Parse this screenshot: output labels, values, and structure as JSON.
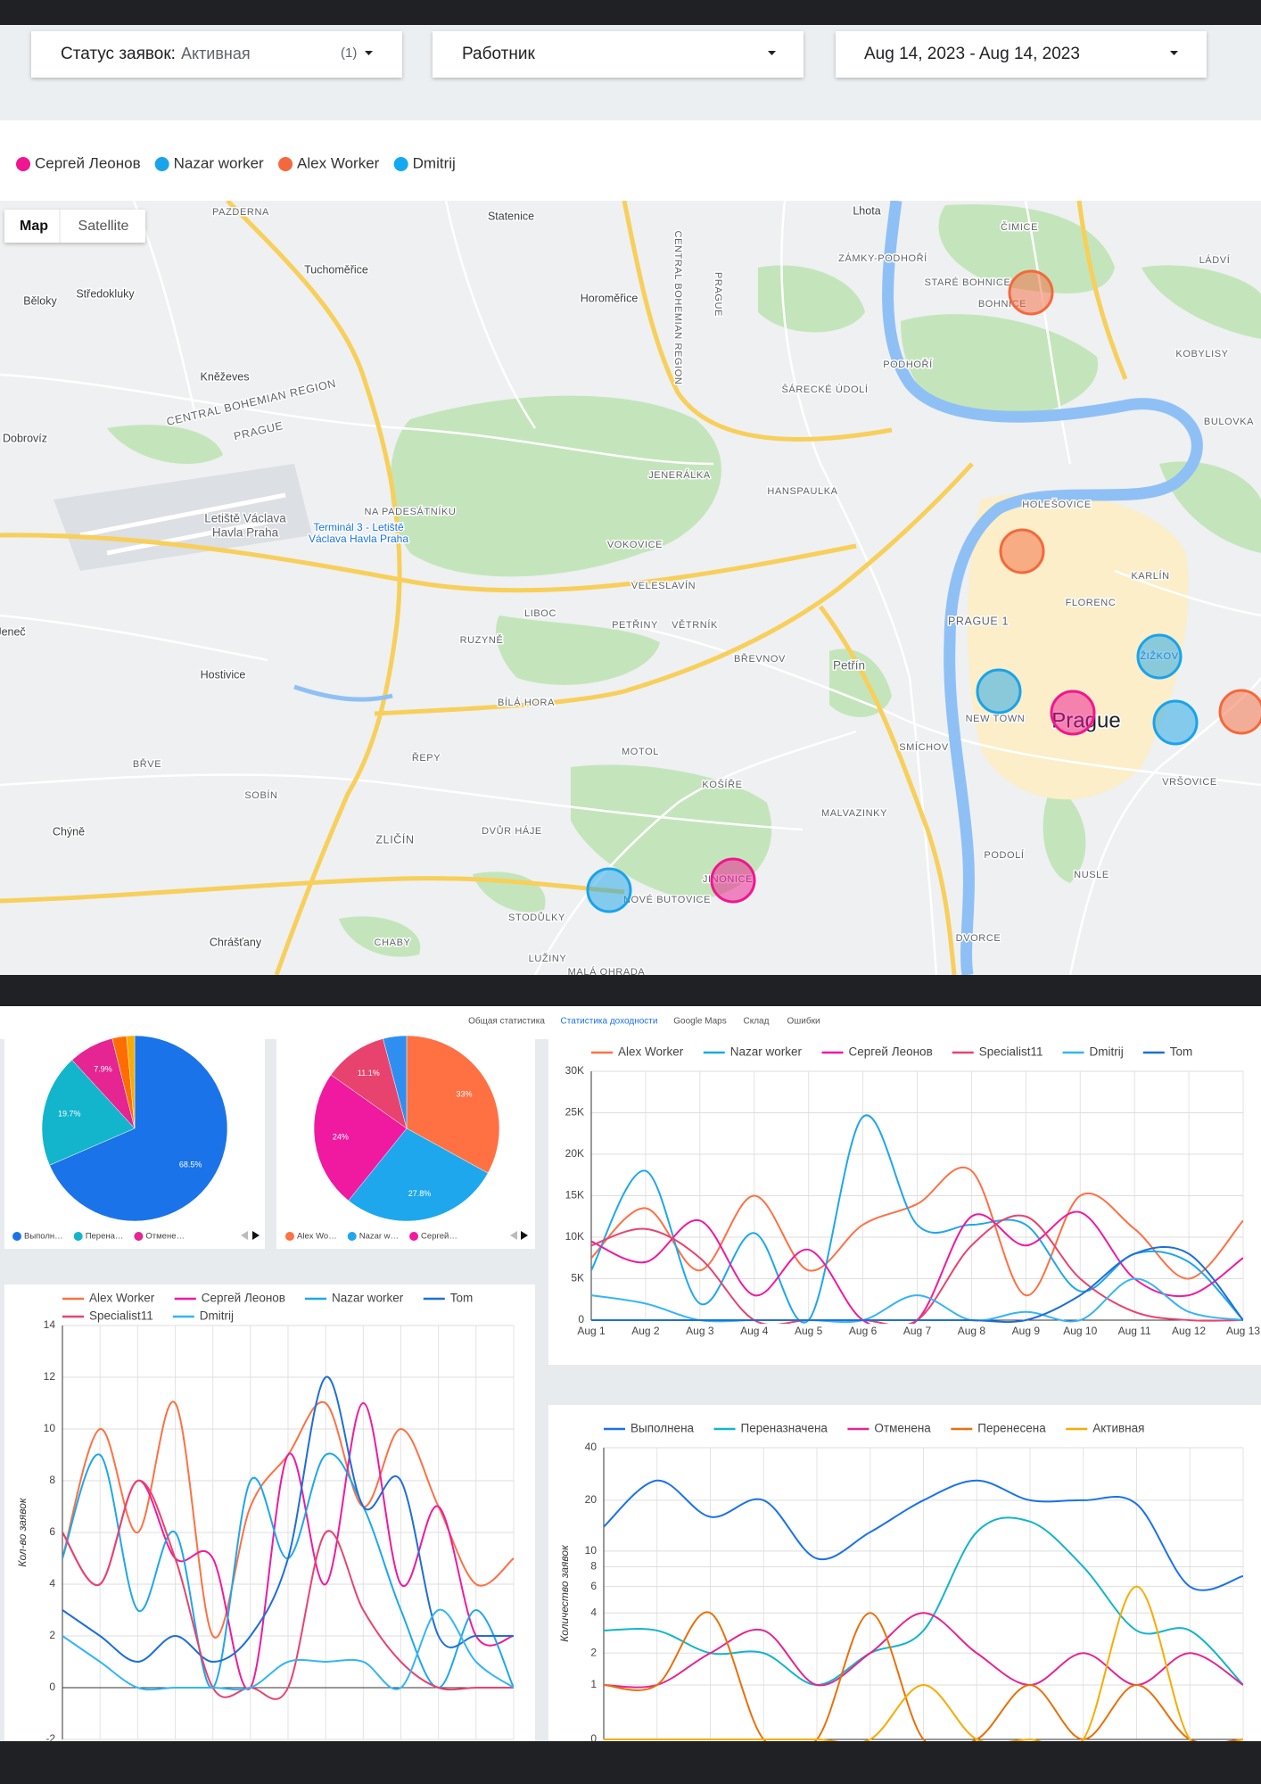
{
  "filters": [
    {
      "label": "Статус заявок:",
      "value": "Активная",
      "count": "(1)"
    },
    {
      "label": "Работник"
    },
    {
      "label": "Aug 14, 2023 - Aug 14, 2023"
    }
  ],
  "legend": [
    {
      "name": "Сергей Леонов",
      "color": "#f0168f"
    },
    {
      "name": "Nazar worker",
      "color": "#1aa3ea"
    },
    {
      "name": "Alex Worker",
      "color": "#f3693d"
    },
    {
      "name": "Dmitrij",
      "color": "#12a9f2"
    }
  ],
  "map": {
    "buttons": [
      "Map",
      "Satellite"
    ],
    "labels": [
      "PAZDERNA",
      "Statenice",
      "Lhota",
      "ČIMICE",
      "Tuchoměřice",
      "ZÁMKY-PODHOŘÍ",
      "LÁDVÍ",
      "Běloky",
      "Středokluky",
      "Horoměřice",
      "STARÉ BOHNICE",
      "BOHNICE",
      "CENTRAL BOHEMIAN REGION",
      "PRAGUE",
      "Kněževes",
      "PODHOŘÍ",
      "KOBYLISY",
      "CENTRAL BOHEMIAN REGION",
      "Dobrovíz",
      "PRAGUE",
      "ŠÁRECKÉ ÚDOLÍ",
      "BULOVKA",
      "JENERÁLKA",
      "NA PADESÁTNÍKU",
      "HANSPAULKA",
      "HOLEŠOVICE",
      "Letiště Václava",
      "Havla Praha",
      "Terminál 3 - Letiště",
      "Václava Havla Praha",
      "VOKOVICE",
      "KARLÍN",
      "VELESLAVÍN",
      "FLORENC",
      "LIBOC",
      "PRAGUE 1",
      "PETŘINY",
      "VĚTRNÍK",
      "Jeneč",
      "RUZYNĚ",
      "ŽIŽKOV",
      "BŘEVNOV",
      "Petřín",
      "Hostivice",
      "BÍLÁ HORA",
      "NEW TOWN",
      "Prague",
      "MOTOL",
      "SMÍCHOV",
      "ŘEPY",
      "BŘVE",
      "VRŠOVICE",
      "KOŠÍŘE",
      "SOBÍN",
      "MALVAZINKY",
      "Chýně",
      "DVŮR HÁJE",
      "ZLIČÍN",
      "PODOLÍ",
      "NUSLE",
      "JINONICE",
      "NOVÉ BUTOVICE",
      "STODŮLKY",
      "DVORCE",
      "Chrášťany",
      "CHABY",
      "LUŽINY",
      "MALÁ OHRADA"
    ]
  },
  "tabs": {
    "items": [
      "Общая статистика",
      "Статистика доходности",
      "Google Maps",
      "Склад",
      "Ошибки"
    ],
    "active": 1
  },
  "chart_data": [
    {
      "type": "pie",
      "categories": [
        "Выполн…",
        "Перена…",
        "Отмене…",
        null,
        null
      ],
      "values": [
        68.5,
        19.7,
        7.9,
        2.5,
        1.4
      ],
      "value_labels": [
        "68.5%",
        "19.7%",
        "7.9%",
        null,
        null
      ],
      "colors": [
        "#1a73e8",
        "#12b5cb",
        "#e52592",
        "#ff6d00",
        "#f9ab00"
      ]
    },
    {
      "type": "pie",
      "categories": [
        "Alex Wo…",
        "Nazar w…",
        "Сергей…",
        null,
        null
      ],
      "values": [
        33,
        27.8,
        24,
        11.1,
        4.1
      ],
      "value_labels": [
        "33%",
        "27.8%",
        "24%",
        "11.1%",
        null
      ],
      "colors": [
        "#ff7043",
        "#1ea7ec",
        "#ef1aa0",
        "#e8436e",
        "#2f8ff0"
      ]
    },
    {
      "type": "line",
      "categories": [
        "Aug 1",
        "Aug 2",
        "Aug 3",
        "Aug 4",
        "Aug 5",
        "Aug 6",
        "Aug 7",
        "Aug 8",
        "Aug 9",
        "Aug 10",
        "Aug 11",
        "Aug 12",
        "Aug 13"
      ],
      "ylim": [
        0,
        30000
      ],
      "yticks": [
        0,
        {
          "value": 5000,
          "label": "5K"
        },
        {
          "value": 10000,
          "label": "10K"
        },
        {
          "value": 15000,
          "label": "15K"
        },
        {
          "value": 20000,
          "label": "20K"
        },
        {
          "value": 25000,
          "label": "25K"
        },
        {
          "value": 30000,
          "label": "30K"
        }
      ],
      "series": [
        {
          "name": "Alex Worker",
          "color": "#ff7043",
          "values": [
            7500,
            13500,
            6000,
            15000,
            6000,
            11500,
            14000,
            18000,
            3000,
            15000,
            11000,
            5000,
            12000
          ]
        },
        {
          "name": "Nazar worker",
          "color": "#1ea7ec",
          "values": [
            6000,
            18000,
            2000,
            10500,
            0,
            24500,
            11500,
            11500,
            11500,
            3500,
            8000,
            7000,
            0
          ]
        },
        {
          "name": "Сергей Леонов",
          "color": "#ef1aa0",
          "values": [
            9500,
            7000,
            12000,
            3000,
            8500,
            0,
            0,
            12500,
            9000,
            13000,
            5000,
            3000,
            7500
          ]
        },
        {
          "name": "Specialist11",
          "color": "#e8436e",
          "values": [
            9000,
            11000,
            7500,
            0,
            0,
            0,
            0,
            9000,
            12500,
            5000,
            1000,
            0,
            0
          ]
        },
        {
          "name": "Dmitrij",
          "color": "#35b5f5",
          "values": [
            3000,
            2000,
            0,
            0,
            0,
            0,
            3000,
            0,
            1000,
            0,
            5000,
            1000,
            0
          ]
        },
        {
          "name": "Tom",
          "color": "#1e6fd9",
          "values": [
            0,
            0,
            0,
            0,
            0,
            0,
            0,
            0,
            0,
            3000,
            8000,
            8000,
            0
          ]
        }
      ]
    },
    {
      "type": "line",
      "y_label": "Кол-во заявок",
      "ylim": [
        -2,
        14
      ],
      "yticks": [
        -2,
        0,
        2,
        4,
        6,
        8,
        10,
        12,
        14
      ],
      "series": [
        {
          "name": "Alex Worker",
          "color": "#ff7043",
          "values": [
            5,
            10,
            6,
            11,
            2,
            7,
            9,
            11,
            7,
            10,
            7,
            4,
            5
          ]
        },
        {
          "name": "Сергей Леонов",
          "color": "#ef1aa0",
          "values": [
            6,
            4,
            8,
            5,
            5,
            0,
            9,
            4,
            11,
            4,
            7,
            2,
            2
          ]
        },
        {
          "name": "Nazar worker",
          "color": "#1ea7ec",
          "values": [
            5,
            9,
            3,
            6,
            0,
            8,
            5,
            9,
            7,
            3,
            0,
            3,
            0
          ]
        },
        {
          "name": "Tom",
          "color": "#1e6fd9",
          "values": [
            3,
            2,
            1,
            2,
            1,
            2,
            5,
            12,
            7,
            8,
            2,
            2,
            2
          ]
        },
        {
          "name": "Specialist11",
          "color": "#e8436e",
          "values": [
            6,
            4,
            8,
            5,
            0,
            0,
            0,
            6,
            3,
            1,
            0,
            0,
            0
          ]
        },
        {
          "name": "Dmitrij",
          "color": "#35b5f5",
          "values": [
            2,
            1,
            0,
            0,
            0,
            0,
            1,
            1,
            1,
            0,
            3,
            1,
            0
          ]
        }
      ]
    },
    {
      "type": "line",
      "y_label": "Количество заявок",
      "scale": "log",
      "ylim": [
        0,
        40
      ],
      "yticks": [
        0,
        1,
        2,
        4,
        6,
        8,
        10,
        20,
        40
      ],
      "series": [
        {
          "name": "Выполнена",
          "color": "#1a73e8",
          "values": [
            14,
            26,
            16,
            20,
            9,
            13,
            20,
            26,
            20,
            20,
            19,
            6,
            7
          ]
        },
        {
          "name": "Переназначена",
          "color": "#12b5cb",
          "values": [
            3,
            3,
            2,
            2,
            1,
            2,
            3,
            13,
            15,
            8,
            3,
            3,
            1
          ]
        },
        {
          "name": "Отменена",
          "color": "#e52592",
          "values": [
            1,
            1,
            2,
            3,
            1,
            2,
            4,
            2,
            1,
            2,
            1,
            2,
            1
          ]
        },
        {
          "name": "Перенесена",
          "color": "#e8710a",
          "values": [
            1,
            1,
            4,
            0,
            0,
            4,
            0,
            0,
            1,
            0,
            1,
            0,
            0
          ]
        },
        {
          "name": "Активная",
          "color": "#f9ab00",
          "values": [
            0,
            0,
            0,
            0,
            0,
            0,
            1,
            0,
            0,
            0,
            6,
            0,
            0
          ]
        }
      ]
    }
  ]
}
